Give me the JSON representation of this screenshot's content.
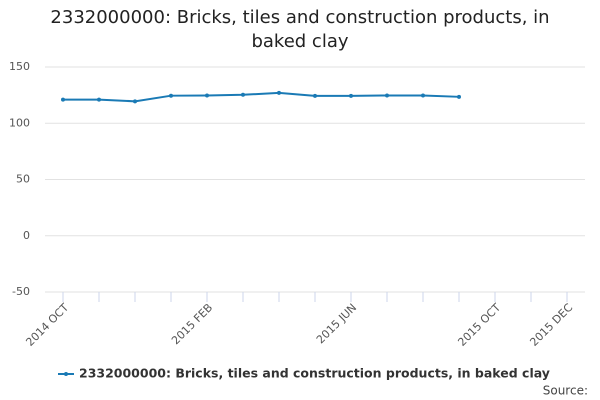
{
  "chart_data": {
    "type": "line",
    "title": "2332000000: Bricks, tiles and construction products, in baked clay",
    "categories": [
      "2014 OCT",
      null,
      null,
      null,
      "2015 FEB",
      null,
      null,
      null,
      "2015 JUN",
      null,
      null,
      null,
      "2015 OCT",
      null,
      "2015 DEC"
    ],
    "series": [
      {
        "name": "2332000000: Bricks, tiles and construction products, in baked clay",
        "color": "#1a7ab5",
        "values": [
          121,
          121,
          119.5,
          124.5,
          124.7,
          125.3,
          127,
          124.3,
          124.3,
          124.7,
          124.7,
          123.5,
          null,
          null,
          null
        ]
      }
    ],
    "ylim": [
      -50,
      150
    ],
    "yticks": [
      -50,
      0,
      50,
      100,
      150
    ],
    "grid": true,
    "source": "Source:"
  }
}
